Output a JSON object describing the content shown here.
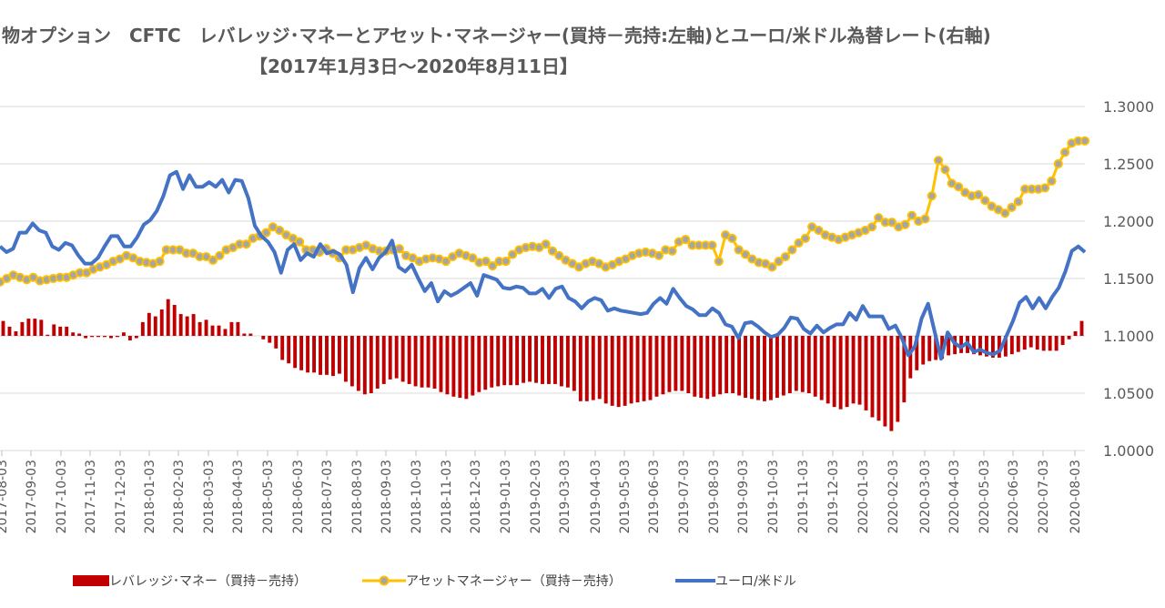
{
  "chart_data": {
    "type": "bar+line",
    "title": "物オプション　CFTC　レバレッジ･マネーとアセット･マネージャー(買持－売持:左軸)とユーロ/米ドル為替レート(右軸)",
    "subtitle": "【2017年1月3日～2020年8月11日】",
    "xlabel": "",
    "ylabel_right": "",
    "right_axis": {
      "ylim": [
        1.0,
        1.3
      ],
      "ticks": [
        "1.3000",
        "1.2500",
        "1.2000",
        "1.1500",
        "1.1000",
        "1.0500",
        "1.0000"
      ]
    },
    "x_tick_labels": [
      "2017-08-03",
      "2017-09-03",
      "2017-10-03",
      "2017-11-03",
      "2017-12-03",
      "2018-01-03",
      "2018-02-03",
      "2018-03-03",
      "2018-04-03",
      "2018-05-03",
      "2018-06-03",
      "2018-07-03",
      "2018-08-03",
      "2018-09-03",
      "2018-10-03",
      "2018-11-03",
      "2018-12-03",
      "2019-01-03",
      "2019-02-03",
      "2019-03-03",
      "2019-04-03",
      "2019-05-03",
      "2019-06-03",
      "2019-07-03",
      "2019-08-03",
      "2019-09-03",
      "2019-10-03",
      "2019-11-03",
      "2019-12-03",
      "2019-12-03",
      "2020-01-03",
      "2020-02-03",
      "2020-03-03",
      "2020-04-03",
      "2020-05-03",
      "2020-06-03",
      "2020-07-03",
      "2020-08-03"
    ],
    "x_start": "2017-07-25",
    "x_end": "2020-08-11",
    "series": [
      {
        "name": "レバレッジ･マネー（買持－売持）",
        "kind": "bar",
        "color": "#C00000",
        "note": "values expressed in right-axis units (baseline 1.1000)",
        "values": [
          1.113,
          1.108,
          1.104,
          1.112,
          1.115,
          1.115,
          1.114,
          1.101,
          1.11,
          1.108,
          1.108,
          1.103,
          1.102,
          1.098,
          1.099,
          1.099,
          1.099,
          1.098,
          1.099,
          1.103,
          1.096,
          1.098,
          1.112,
          1.12,
          1.117,
          1.123,
          1.132,
          1.127,
          1.119,
          1.117,
          1.119,
          1.112,
          1.114,
          1.109,
          1.109,
          1.106,
          1.112,
          1.112,
          1.102,
          1.102,
          1.1,
          1.097,
          1.094,
          1.089,
          1.079,
          1.076,
          1.072,
          1.07,
          1.068,
          1.068,
          1.066,
          1.066,
          1.065,
          1.067,
          1.06,
          1.056,
          1.052,
          1.049,
          1.05,
          1.054,
          1.058,
          1.062,
          1.063,
          1.06,
          1.058,
          1.056,
          1.055,
          1.055,
          1.054,
          1.051,
          1.049,
          1.047,
          1.046,
          1.045,
          1.048,
          1.051,
          1.053,
          1.055,
          1.056,
          1.057,
          1.057,
          1.057,
          1.059,
          1.06,
          1.059,
          1.058,
          1.058,
          1.058,
          1.056,
          1.055,
          1.052,
          1.043,
          1.043,
          1.044,
          1.045,
          1.041,
          1.039,
          1.038,
          1.039,
          1.041,
          1.042,
          1.043,
          1.044,
          1.047,
          1.049,
          1.051,
          1.052,
          1.052,
          1.05,
          1.047,
          1.046,
          1.045,
          1.047,
          1.049,
          1.05,
          1.05,
          1.048,
          1.046,
          1.045,
          1.044,
          1.043,
          1.044,
          1.046,
          1.048,
          1.05,
          1.052,
          1.051,
          1.05,
          1.047,
          1.044,
          1.041,
          1.038,
          1.036,
          1.038,
          1.041,
          1.04,
          1.035,
          1.029,
          1.026,
          1.021,
          1.017,
          1.025,
          1.042,
          1.063,
          1.07,
          1.075,
          1.078,
          1.079,
          1.08,
          1.083,
          1.084,
          1.085,
          1.085,
          1.084,
          1.083,
          1.082,
          1.081,
          1.081,
          1.082,
          1.084,
          1.086,
          1.088,
          1.09,
          1.088,
          1.087,
          1.087,
          1.087,
          1.092,
          1.097,
          1.104,
          1.113
        ]
      },
      {
        "name": "アセットマネージャー（買持－売持）",
        "kind": "line-marker",
        "color": "#FFC000",
        "marker_fill": "#A5A5A5",
        "note": "values expressed in right-axis units",
        "values": [
          1.147,
          1.15,
          1.153,
          1.151,
          1.149,
          1.151,
          1.148,
          1.149,
          1.15,
          1.151,
          1.151,
          1.153,
          1.155,
          1.155,
          1.158,
          1.16,
          1.162,
          1.165,
          1.167,
          1.17,
          1.168,
          1.165,
          1.164,
          1.163,
          1.165,
          1.175,
          1.175,
          1.175,
          1.172,
          1.172,
          1.169,
          1.169,
          1.166,
          1.17,
          1.175,
          1.177,
          1.18,
          1.18,
          1.185,
          1.187,
          1.19,
          1.195,
          1.192,
          1.188,
          1.185,
          1.182,
          1.175,
          1.175,
          1.173,
          1.176,
          1.172,
          1.168,
          1.175,
          1.175,
          1.177,
          1.179,
          1.176,
          1.174,
          1.174,
          1.175,
          1.176,
          1.17,
          1.168,
          1.165,
          1.167,
          1.168,
          1.167,
          1.165,
          1.169,
          1.172,
          1.17,
          1.168,
          1.164,
          1.165,
          1.161,
          1.165,
          1.165,
          1.171,
          1.175,
          1.177,
          1.178,
          1.177,
          1.18,
          1.174,
          1.17,
          1.166,
          1.163,
          1.16,
          1.163,
          1.165,
          1.163,
          1.16,
          1.162,
          1.165,
          1.167,
          1.17,
          1.172,
          1.173,
          1.172,
          1.17,
          1.175,
          1.174,
          1.182,
          1.184,
          1.179,
          1.179,
          1.179,
          1.179,
          1.165,
          1.188,
          1.185,
          1.175,
          1.171,
          1.167,
          1.164,
          1.163,
          1.16,
          1.165,
          1.169,
          1.175,
          1.181,
          1.185,
          1.195,
          1.192,
          1.188,
          1.186,
          1.184,
          1.186,
          1.188,
          1.19,
          1.192,
          1.195,
          1.203,
          1.199,
          1.199,
          1.195,
          1.197,
          1.205,
          1.2,
          1.202,
          1.222,
          1.253,
          1.245,
          1.233,
          1.23,
          1.225,
          1.222,
          1.223,
          1.218,
          1.213,
          1.21,
          1.207,
          1.212,
          1.217,
          1.228,
          1.228,
          1.228,
          1.229,
          1.235,
          1.25,
          1.26,
          1.268,
          1.27,
          1.27
        ]
      },
      {
        "name": "ユーロ/米ドル",
        "kind": "line",
        "color": "#4472C4",
        "values": [
          1.178,
          1.173,
          1.176,
          1.19,
          1.19,
          1.198,
          1.192,
          1.19,
          1.178,
          1.175,
          1.181,
          1.179,
          1.17,
          1.163,
          1.163,
          1.168,
          1.178,
          1.187,
          1.187,
          1.178,
          1.178,
          1.186,
          1.197,
          1.201,
          1.209,
          1.222,
          1.24,
          1.243,
          1.228,
          1.24,
          1.23,
          1.23,
          1.234,
          1.23,
          1.236,
          1.225,
          1.236,
          1.235,
          1.22,
          1.196,
          1.187,
          1.182,
          1.173,
          1.155,
          1.175,
          1.18,
          1.166,
          1.172,
          1.169,
          1.18,
          1.172,
          1.174,
          1.171,
          1.162,
          1.138,
          1.159,
          1.168,
          1.158,
          1.168,
          1.173,
          1.183,
          1.16,
          1.156,
          1.162,
          1.15,
          1.139,
          1.146,
          1.13,
          1.139,
          1.135,
          1.138,
          1.142,
          1.146,
          1.135,
          1.153,
          1.151,
          1.149,
          1.142,
          1.141,
          1.143,
          1.142,
          1.137,
          1.137,
          1.141,
          1.133,
          1.141,
          1.143,
          1.133,
          1.13,
          1.124,
          1.13,
          1.133,
          1.131,
          1.122,
          1.124,
          1.122,
          1.121,
          1.12,
          1.119,
          1.12,
          1.128,
          1.133,
          1.128,
          1.141,
          1.133,
          1.126,
          1.123,
          1.118,
          1.118,
          1.124,
          1.12,
          1.11,
          1.108,
          1.098,
          1.111,
          1.112,
          1.108,
          1.103,
          1.099,
          1.101,
          1.107,
          1.116,
          1.115,
          1.106,
          1.102,
          1.109,
          1.103,
          1.107,
          1.11,
          1.11,
          1.12,
          1.114,
          1.126,
          1.117,
          1.117,
          1.117,
          1.106,
          1.109,
          1.098,
          1.083,
          1.091,
          1.115,
          1.128,
          1.104,
          1.08,
          1.103,
          1.094,
          1.09,
          1.094,
          1.086,
          1.088,
          1.085,
          1.084,
          1.087,
          1.1,
          1.113,
          1.129,
          1.134,
          1.124,
          1.133,
          1.124,
          1.134,
          1.142,
          1.156,
          1.174,
          1.178,
          1.173
        ]
      }
    ],
    "legend_placement": "bottom"
  }
}
